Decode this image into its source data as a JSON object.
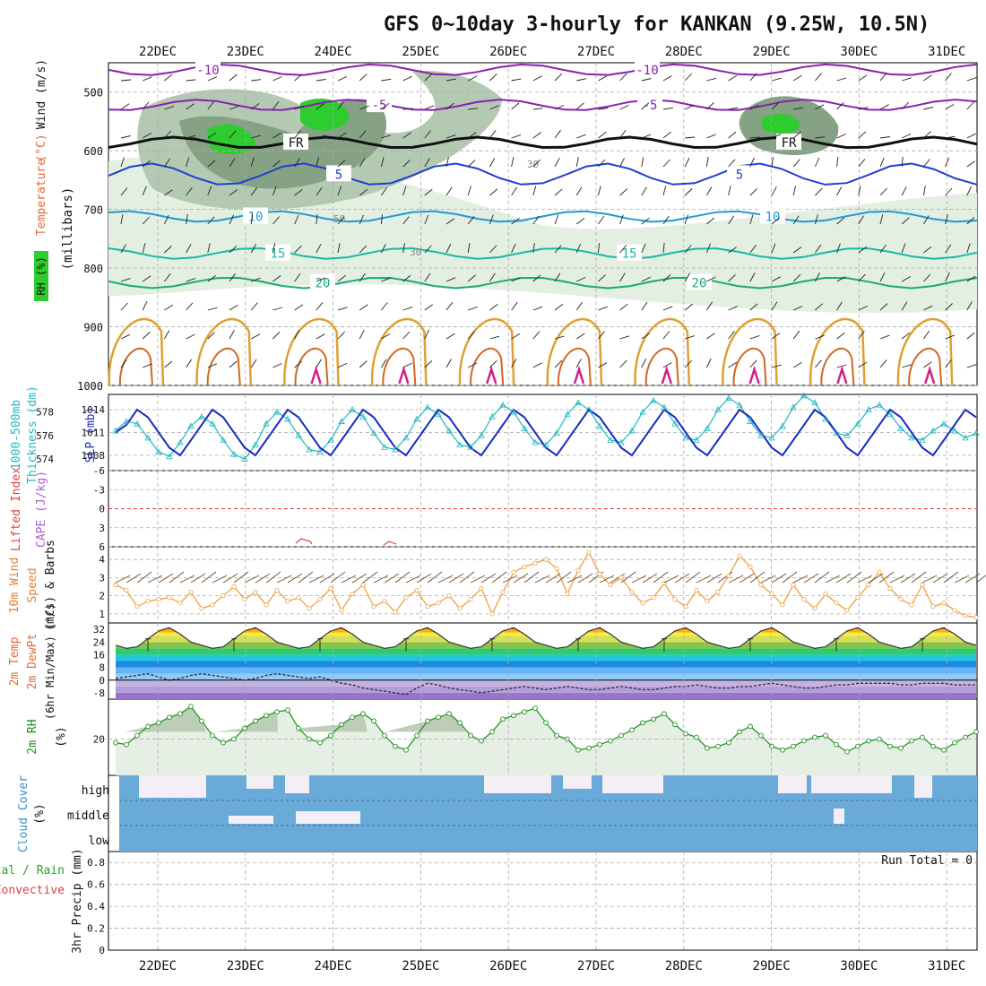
{
  "title": "GFS 0~10day 3-hourly for KANKAN (9.25W, 10.5N)",
  "dates": [
    "22DEC",
    "23DEC",
    "24DEC",
    "25DEC",
    "26DEC",
    "27DEC",
    "28DEC",
    "29DEC",
    "30DEC",
    "31DEC"
  ],
  "colors": {
    "rh_light": "#e3efe1",
    "rh_mid": "#b4c9b2",
    "rh_dark": "#86a285",
    "rh_moist": "#2ecc2e",
    "temp_cold": "#8a1fb0",
    "temp_cool": "#2040d0",
    "temp_mid": "#1e9ad8",
    "temp_warm": "#18b8a8",
    "temp_warmer": "#1aaa7a",
    "temp_hot": "#e0a030",
    "temp_hotter": "#d06820",
    "temp_hottest": "#d0208a",
    "slp": "#1a2ec0",
    "thickness": "#1fb8c0",
    "wind10": "#f0a040",
    "barb": "#6b4a2a",
    "rh2m": "#1a8f1a",
    "cloud": "#6aaad8",
    "cloud_clear": "#f4eef6",
    "lifted": "#e04040"
  },
  "chart_data": [
    {
      "panel": "cross-section",
      "type": "contour",
      "ylabel": "(millibars)",
      "side_labels": {
        "rh": "RH (%)",
        "temperature": "Temperature",
        "temperature_unit": "(°C)",
        "wind": "Wind (m/s)"
      },
      "yticks": [
        500,
        600,
        700,
        800,
        900,
        1000
      ],
      "ylim": [
        1000,
        450
      ],
      "temperature_contours": [
        {
          "label": "-10",
          "pressure": 462
        },
        {
          "label": "-5",
          "pressure": 522
        },
        {
          "label": "FR",
          "pressure": 586
        },
        {
          "label": "5",
          "pressure": 640
        },
        {
          "label": "10",
          "pressure": 712
        },
        {
          "label": "15",
          "pressure": 775
        },
        {
          "label": "20",
          "pressure": 825
        }
      ],
      "rh_labels": [
        "30",
        "50"
      ]
    },
    {
      "panel": "slp-thickness",
      "type": "line",
      "ylabel_left": "Thickness (dm)",
      "ylabel_left2": "1000-500mb",
      "ylabel_right": "SLP (mb)",
      "yticks_left": [
        574,
        576,
        578
      ],
      "yticks_right": [
        1008,
        1011,
        1014
      ],
      "series": [
        {
          "name": "SLP (mb)",
          "values": [
            1011,
            1012,
            1014,
            1013,
            1011,
            1009,
            1008,
            1010,
            1012,
            1014,
            1013,
            1011,
            1009,
            1008,
            1010,
            1012,
            1014,
            1013,
            1011,
            1009,
            1008,
            1010,
            1012,
            1014,
            1013,
            1011,
            1009,
            1008,
            1010,
            1012,
            1014,
            1013,
            1011,
            1009,
            1008,
            1010,
            1012,
            1014,
            1013,
            1011,
            1009,
            1008,
            1010,
            1012,
            1014,
            1013,
            1011,
            1009,
            1008,
            1010,
            1012,
            1014,
            1013,
            1011,
            1009,
            1008,
            1010,
            1012,
            1014,
            1013,
            1011,
            1009,
            1008,
            1010,
            1012,
            1014,
            1013,
            1011,
            1009,
            1008,
            1010,
            1012,
            1014,
            1013,
            1011,
            1009,
            1008,
            1010,
            1012,
            1014,
            1013
          ]
        },
        {
          "name": "Thickness (dm)",
          "values": [
            576.4,
            577.2,
            577.0,
            575.8,
            574.6,
            574.2,
            575.4,
            576.8,
            577.6,
            577.0,
            575.6,
            574.4,
            574.0,
            575.2,
            577.0,
            578.0,
            577.4,
            576.0,
            574.8,
            574.6,
            575.6,
            577.2,
            578.2,
            577.6,
            576.2,
            575.0,
            574.8,
            575.8,
            577.4,
            578.4,
            577.8,
            576.4,
            575.2,
            575.0,
            576.0,
            577.6,
            578.6,
            578.0,
            576.6,
            575.4,
            575.2,
            576.2,
            577.8,
            578.8,
            578.2,
            576.8,
            575.6,
            575.4,
            576.4,
            578.0,
            579.0,
            578.4,
            577.0,
            575.8,
            575.6,
            576.6,
            578.2,
            579.2,
            578.6,
            577.2,
            576.0,
            575.8,
            576.8,
            578.4,
            579.4,
            578.8,
            577.4,
            576.2,
            576.0,
            577.0,
            578.2,
            578.6,
            577.8,
            576.6,
            575.8,
            575.6,
            576.4,
            577.0,
            576.4,
            575.8,
            576.2
          ]
        }
      ]
    },
    {
      "panel": "lifted-cape",
      "type": "line",
      "ylabel": "Lifted Index",
      "ylabel2": "CAPE (J/kg)",
      "yticks": [
        -6,
        -3,
        0,
        3,
        6
      ],
      "ylim": [
        6,
        -6
      ]
    },
    {
      "panel": "wind-10m",
      "type": "line",
      "ylabel": "10m Wind",
      "ylabel2": "Speed",
      "ylabel3": "(m/s) & Barbs",
      "yticks": [
        1,
        2,
        3,
        4
      ],
      "ylim": [
        0.5,
        4.7
      ],
      "series": [
        {
          "name": "Speed",
          "values": [
            2.6,
            2.3,
            1.4,
            1.7,
            1.8,
            1.9,
            1.6,
            2.2,
            1.3,
            1.5,
            2.0,
            2.5,
            1.8,
            2.2,
            1.5,
            2.3,
            1.7,
            1.9,
            1.3,
            1.8,
            2.4,
            1.2,
            2.1,
            2.6,
            1.4,
            1.7,
            1.1,
            1.9,
            2.3,
            1.4,
            1.6,
            2.0,
            1.3,
            1.8,
            2.4,
            1.0,
            2.2,
            3.3,
            3.6,
            3.8,
            4.0,
            3.5,
            2.1,
            3.4,
            4.4,
            3.2,
            2.6,
            3.0,
            2.2,
            1.6,
            1.9,
            2.7,
            1.8,
            1.4,
            2.3,
            1.7,
            2.2,
            3.1,
            4.2,
            3.6,
            2.6,
            2.1,
            1.5,
            2.6,
            1.8,
            1.3,
            2.1,
            1.6,
            1.2,
            1.9,
            2.6,
            3.3,
            2.4,
            1.8,
            1.5,
            2.6,
            1.4,
            1.6,
            1.2,
            0.9,
            0.8
          ]
        }
      ]
    },
    {
      "panel": "temp-2m",
      "type": "area",
      "ylabel": "2m Temp",
      "ylabel2": "2m DewPt",
      "ylabel3": "(6hr Min/Max) (°C)",
      "yticks": [
        -8,
        0,
        8,
        16,
        24,
        32
      ],
      "ylim": [
        -12,
        36
      ],
      "series": [
        {
          "name": "2m Temp",
          "values": [
            22,
            20,
            21,
            26,
            31,
            33,
            29,
            24,
            22,
            20,
            21,
            26,
            31,
            33,
            29,
            24,
            22,
            20,
            21,
            26,
            31,
            33,
            29,
            24,
            22,
            20,
            21,
            26,
            31,
            33,
            29,
            24,
            22,
            20,
            21,
            26,
            31,
            33,
            29,
            24,
            22,
            20,
            21,
            26,
            31,
            33,
            29,
            24,
            22,
            20,
            21,
            26,
            31,
            33,
            29,
            24,
            22,
            20,
            21,
            26,
            31,
            33,
            29,
            24,
            22,
            20,
            21,
            26,
            31,
            33,
            29,
            24,
            22,
            20,
            21,
            26,
            31,
            33,
            29,
            24,
            22
          ]
        },
        {
          "name": "2m DewPt",
          "values": [
            1,
            2,
            3,
            4,
            2,
            0,
            1,
            3,
            4,
            3,
            2,
            1,
            0,
            1,
            3,
            4,
            3,
            2,
            1,
            2,
            0,
            -2,
            -3,
            -5,
            -6,
            -7,
            -8,
            -9,
            -5,
            -2,
            -3,
            -5,
            -6,
            -7,
            -8,
            -7,
            -6,
            -5,
            -4,
            -5,
            -6,
            -5,
            -4,
            -5,
            -6,
            -6,
            -5,
            -4,
            -5,
            -6,
            -6,
            -5,
            -4,
            -4,
            -3,
            -4,
            -5,
            -5,
            -4,
            -4,
            -3,
            -2,
            -3,
            -4,
            -5,
            -5,
            -4,
            -3,
            -3,
            -2,
            -2,
            -2,
            -2,
            -3,
            -3,
            -2,
            -2,
            -2,
            -3,
            -3,
            -3
          ]
        }
      ]
    },
    {
      "panel": "rh-2m",
      "type": "area",
      "ylabel": "2m RH",
      "yunit": "(%)",
      "yticks": [
        20
      ],
      "ylim": [
        0,
        42
      ],
      "series": [
        {
          "name": "2m RH",
          "values": [
            18,
            17,
            22,
            27,
            29,
            32,
            34,
            38,
            30,
            22,
            18,
            20,
            26,
            30,
            33,
            35,
            36,
            26,
            20,
            18,
            22,
            28,
            32,
            34,
            30,
            22,
            16,
            14,
            22,
            30,
            32,
            34,
            29,
            22,
            19,
            24,
            31,
            33,
            35,
            37,
            29,
            22,
            20,
            14,
            15,
            17,
            19,
            22,
            25,
            29,
            31,
            34,
            28,
            23,
            21,
            15,
            16,
            18,
            24,
            27,
            22,
            16,
            14,
            16,
            19,
            21,
            22,
            17,
            13,
            16,
            19,
            20,
            16,
            15,
            19,
            21,
            16,
            14,
            18,
            21,
            24
          ]
        }
      ]
    },
    {
      "panel": "cloud-cover",
      "type": "bar",
      "ylabel": "Cloud Cover",
      "yunit": "(%)",
      "levels": [
        "high",
        "middle",
        "low"
      ]
    },
    {
      "panel": "precip",
      "type": "bar",
      "ylabel": "3hr Precip (mm)",
      "ylabel_total": "Total / Rain",
      "ylabel_convective": "Convective",
      "yticks": [
        0,
        0.2,
        0.4,
        0.6,
        0.8
      ],
      "ylim": [
        0,
        0.9
      ],
      "run_total_label": "Run Total = 0"
    }
  ]
}
